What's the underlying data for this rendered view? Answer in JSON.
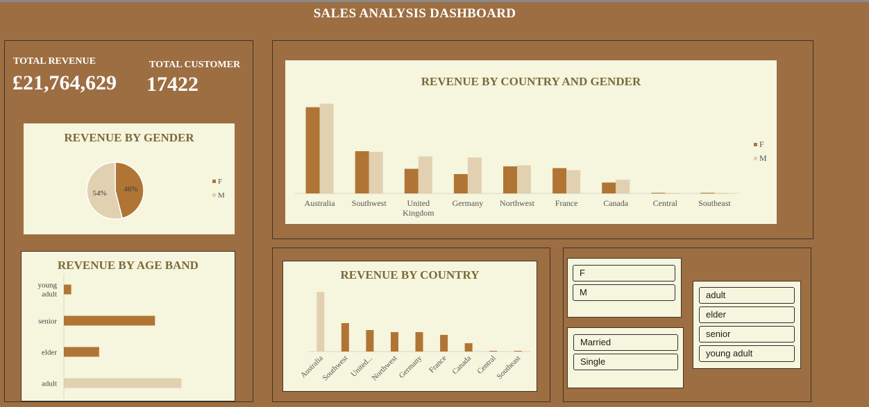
{
  "title": "SALES ANALYSIS DASHBOARD",
  "kpis": {
    "total_revenue_label": "TOTAL REVENUE",
    "total_revenue_value": "£21,764,629",
    "total_customer_label": "TOTAL CUSTOMER",
    "total_customer_value": "17422"
  },
  "colors": {
    "background": "#9d6e42",
    "card": "#f6f5de",
    "female": "#b07534",
    "male": "#e1d1b1",
    "title_text": "#7a6a3b"
  },
  "chart_data": [
    {
      "type": "pie",
      "title": "REVENUE BY GENDER",
      "labels": [
        "F",
        "M"
      ],
      "values": [
        46,
        54
      ],
      "slice_labels": [
        "46%",
        "54%"
      ],
      "legend": "right"
    },
    {
      "type": "bar",
      "orientation": "horizontal",
      "title": "REVENUE BY AGE BAND",
      "categories": [
        "young adult",
        "senior",
        "elder",
        "adult"
      ],
      "values": [
        0.5,
        6.2,
        2.4,
        8.0
      ],
      "xlim": [
        0,
        8.5
      ]
    },
    {
      "type": "bar",
      "title": "REVENUE BY COUNTRY AND GENDER",
      "categories": [
        "Australia",
        "Southwest",
        "United Kingdom",
        "Germany",
        "Northwest",
        "France",
        "Canada",
        "Central",
        "Southeast"
      ],
      "series": [
        {
          "name": "F",
          "values": [
            2.45,
            1.2,
            0.7,
            0.55,
            0.77,
            0.72,
            0.31,
            0.02,
            0.02
          ]
        },
        {
          "name": "M",
          "values": [
            2.55,
            1.18,
            1.05,
            1.02,
            0.8,
            0.66,
            0.39,
            0.02,
            0.02
          ]
        }
      ],
      "ylim": [
        0,
        2.6
      ],
      "legend": "right"
    },
    {
      "type": "bar",
      "title": "REVENUE BY COUNTRY",
      "categories": [
        "Australia",
        "Southwest",
        "United...",
        "Northwest",
        "Germany",
        "France",
        "Canada",
        "Central",
        "Southeast"
      ],
      "values": [
        8.6,
        4.1,
        3.1,
        2.8,
        2.8,
        2.4,
        1.2,
        0.1,
        0.1
      ],
      "ylim": [
        0,
        8.8
      ]
    }
  ],
  "slicers": {
    "gender": [
      "F",
      "M"
    ],
    "marital": [
      "Married",
      "Single"
    ],
    "age_band": [
      "adult",
      "elder",
      "senior",
      "young adult"
    ]
  }
}
